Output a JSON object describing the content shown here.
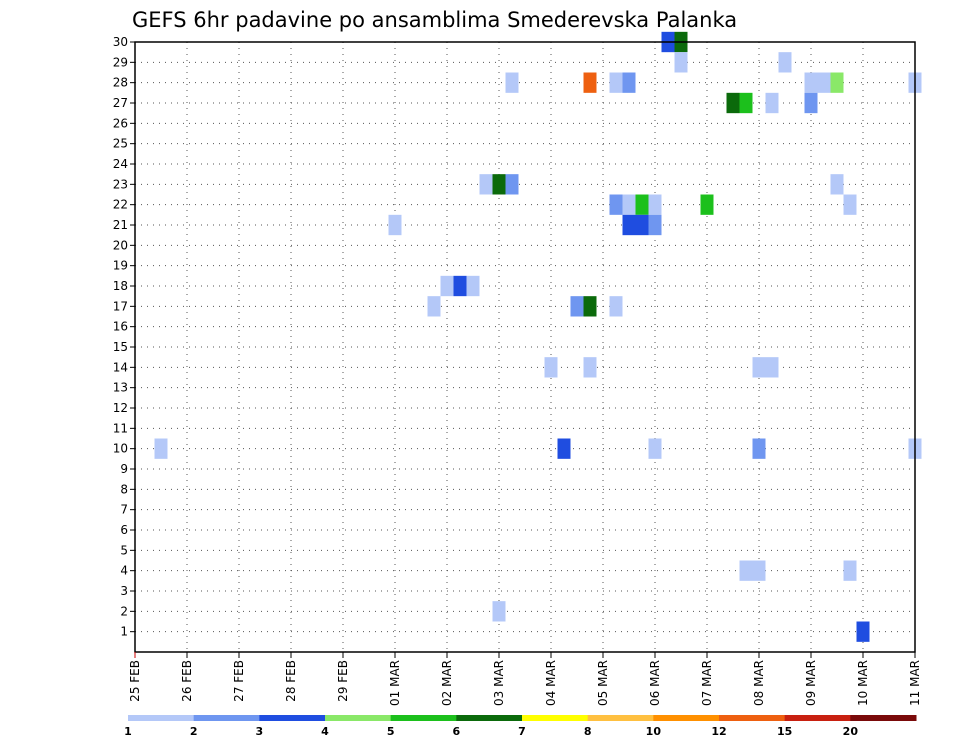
{
  "chart_data": {
    "type": "heatmap",
    "title": "GEFS 6hr padavine po ansamblima Smederevska Palanka",
    "xlabel": "",
    "ylabel": "",
    "x_ticks": [
      "25 FEB",
      "26 FEB",
      "27 FEB",
      "28 FEB",
      "29 FEB",
      "01 MAR",
      "02 MAR",
      "03 MAR",
      "04 MAR",
      "05 MAR",
      "06 MAR",
      "07 MAR",
      "08 MAR",
      "09 MAR",
      "10 MAR",
      "11 MAR"
    ],
    "y_ticks": [
      "1",
      "2",
      "3",
      "4",
      "5",
      "6",
      "7",
      "8",
      "9",
      "10",
      "11",
      "12",
      "13",
      "14",
      "15",
      "16",
      "17",
      "18",
      "19",
      "20",
      "21",
      "22",
      "23",
      "24",
      "25",
      "26",
      "27",
      "28",
      "29",
      "30"
    ],
    "x_unit": "6-hour steps from 25 FEB 00Z",
    "grid": true,
    "colorbar": {
      "labels": [
        "1",
        "2",
        "3",
        "4",
        "5",
        "6",
        "7",
        "8",
        "10",
        "12",
        "15",
        "20"
      ],
      "colors": [
        "#b4c8f8",
        "#6f96f0",
        "#1f4de0",
        "#8ae868",
        "#1cc01c",
        "#0b6a0b",
        "#ffff00",
        "#ffc040",
        "#ff9000",
        "#ee6010",
        "#c82010",
        "#7a0a0a"
      ]
    },
    "cells": [
      {
        "member": 30,
        "t": 41,
        "v": 3
      },
      {
        "member": 30,
        "t": 42,
        "v": 6
      },
      {
        "member": 29,
        "t": 42,
        "v": 1
      },
      {
        "member": 29,
        "t": 50,
        "v": 1
      },
      {
        "member": 28,
        "t": 29,
        "v": 1
      },
      {
        "member": 28,
        "t": 35,
        "v": 10
      },
      {
        "member": 28,
        "t": 37,
        "v": 1
      },
      {
        "member": 28,
        "t": 38,
        "v": 2
      },
      {
        "member": 28,
        "t": 52,
        "v": 1
      },
      {
        "member": 28,
        "t": 53,
        "v": 1
      },
      {
        "member": 28,
        "t": 54,
        "v": 4
      },
      {
        "member": 28,
        "t": 60,
        "v": 1
      },
      {
        "member": 27,
        "t": 46,
        "v": 6
      },
      {
        "member": 27,
        "t": 47,
        "v": 5
      },
      {
        "member": 27,
        "t": 49,
        "v": 1
      },
      {
        "member": 27,
        "t": 52,
        "v": 2
      },
      {
        "member": 23,
        "t": 27,
        "v": 1
      },
      {
        "member": 23,
        "t": 28,
        "v": 6
      },
      {
        "member": 23,
        "t": 29,
        "v": 2
      },
      {
        "member": 23,
        "t": 54,
        "v": 1
      },
      {
        "member": 22,
        "t": 37,
        "v": 2
      },
      {
        "member": 22,
        "t": 38,
        "v": 1
      },
      {
        "member": 22,
        "t": 39,
        "v": 5
      },
      {
        "member": 22,
        "t": 40,
        "v": 1
      },
      {
        "member": 22,
        "t": 44,
        "v": 5
      },
      {
        "member": 22,
        "t": 55,
        "v": 1
      },
      {
        "member": 21,
        "t": 20,
        "v": 1
      },
      {
        "member": 21,
        "t": 38,
        "v": 3
      },
      {
        "member": 21,
        "t": 39,
        "v": 3
      },
      {
        "member": 21,
        "t": 40,
        "v": 2
      },
      {
        "member": 18,
        "t": 24,
        "v": 1
      },
      {
        "member": 18,
        "t": 25,
        "v": 3
      },
      {
        "member": 18,
        "t": 26,
        "v": 1
      },
      {
        "member": 17,
        "t": 23,
        "v": 1
      },
      {
        "member": 17,
        "t": 34,
        "v": 2
      },
      {
        "member": 17,
        "t": 35,
        "v": 6
      },
      {
        "member": 17,
        "t": 37,
        "v": 1
      },
      {
        "member": 14,
        "t": 32,
        "v": 1
      },
      {
        "member": 14,
        "t": 35,
        "v": 1
      },
      {
        "member": 14,
        "t": 48,
        "v": 1
      },
      {
        "member": 14,
        "t": 49,
        "v": 1
      },
      {
        "member": 10,
        "t": 2,
        "v": 1
      },
      {
        "member": 10,
        "t": 33,
        "v": 3
      },
      {
        "member": 10,
        "t": 40,
        "v": 1
      },
      {
        "member": 10,
        "t": 48,
        "v": 2
      },
      {
        "member": 10,
        "t": 60,
        "v": 1
      },
      {
        "member": 4,
        "t": 47,
        "v": 1
      },
      {
        "member": 4,
        "t": 48,
        "v": 1
      },
      {
        "member": 4,
        "t": 55,
        "v": 1
      },
      {
        "member": 2,
        "t": 28,
        "v": 1
      },
      {
        "member": 1,
        "t": 56,
        "v": 3
      }
    ]
  }
}
